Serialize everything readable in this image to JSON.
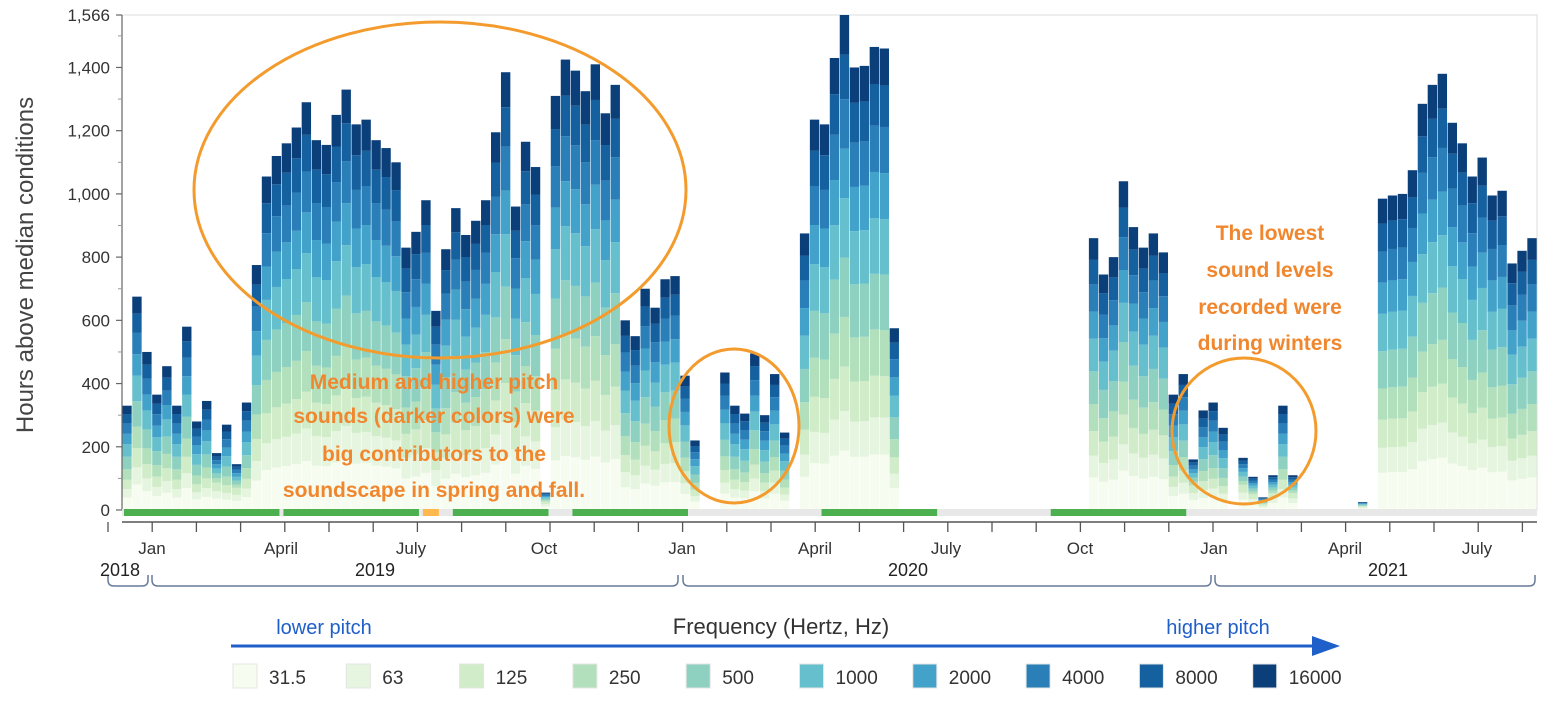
{
  "chart_data": {
    "type": "bar",
    "stacked": true,
    "ylabel": "Hours above median conditions",
    "ylim": [
      0,
      1566
    ],
    "y_ticks": [
      "1,566",
      "1,400",
      "1,200",
      "1,000",
      "800",
      "600",
      "400",
      "200",
      "0"
    ],
    "y_tick_values": [
      1566,
      1400,
      1200,
      1000,
      800,
      600,
      400,
      200,
      0
    ],
    "x_tick_labels": [
      "Jan",
      "April",
      "July",
      "Oct",
      "Jan",
      "April",
      "July",
      "Oct",
      "Jan",
      "April",
      "July"
    ],
    "year_labels": [
      "2018",
      "2019",
      "2020",
      "2021"
    ],
    "bars": {
      "totals": [
        330,
        675,
        500,
        365,
        455,
        330,
        580,
        280,
        345,
        180,
        270,
        145,
        340,
        775,
        1055,
        1120,
        1160,
        1210,
        1290,
        1170,
        1155,
        1250,
        1330,
        1220,
        1235,
        1170,
        1145,
        1100,
        830,
        880,
        980,
        630,
        825,
        955,
        870,
        915,
        980,
        1195,
        1385,
        960,
        1165,
        1085,
        55,
        1310,
        1425,
        1390,
        1325,
        1410,
        1255,
        1345,
        600,
        550,
        700,
        640,
        730,
        740,
        425,
        220,
        0,
        0,
        435,
        330,
        305,
        495,
        300,
        430,
        245,
        0,
        875,
        1235,
        1220,
        1430,
        1566,
        1400,
        1405,
        1465,
        1460,
        575,
        0,
        0,
        0,
        0,
        0,
        0,
        0,
        0,
        0,
        0,
        0,
        0,
        0,
        0,
        0,
        0,
        0,
        0,
        0,
        860,
        745,
        800,
        1040,
        895,
        830,
        875,
        815,
        365,
        430,
        160,
        315,
        340,
        260,
        0,
        165,
        105,
        40,
        110,
        330,
        110,
        0,
        0,
        0,
        0,
        0,
        0,
        25,
        0,
        985,
        995,
        1000,
        1075,
        1285,
        1345,
        1380,
        1225,
        1160,
        1055,
        1115,
        995,
        1010,
        780,
        820,
        860
      ],
      "low_shares": [
        0.12,
        0.1,
        0.1
      ],
      "segment_shares": [
        0.12,
        0.08,
        0.09,
        0.1,
        0.12,
        0.12,
        0.1,
        0.1,
        0.09,
        0.08
      ]
    },
    "categories": [
      "31.5",
      "63",
      "125",
      "250",
      "500",
      "1000",
      "2000",
      "4000",
      "8000",
      "16000"
    ],
    "colors": [
      "#f7fcf0",
      "#e6f5df",
      "#d0ecc8",
      "#b2e0bc",
      "#8ed1c1",
      "#66bfcc",
      "#43a2ca",
      "#2a7fb8",
      "#15609f",
      "#0b3f7a"
    ],
    "timeline": {
      "segments": [
        {
          "start": 0,
          "end": 16,
          "status": "green"
        },
        {
          "start": 16,
          "end": 30,
          "status": "green"
        },
        {
          "start": 30,
          "end": 32,
          "status": "orange"
        },
        {
          "start": 33,
          "end": 43,
          "status": "green"
        },
        {
          "start": 45,
          "end": 57,
          "status": "green"
        },
        {
          "start": 70,
          "end": 82,
          "status": "green"
        },
        {
          "start": 93,
          "end": 107,
          "status": "green"
        }
      ],
      "colors": {
        "green": "#4caf50",
        "orange": "#ffb84d",
        "track": "#e8e8e8"
      }
    },
    "annotations": [
      "Medium and higher pitch",
      "sounds (darker colors) were",
      "big contributors to the",
      "soundscape in spring and fall.",
      "The lowest",
      "sound levels",
      "recorded were",
      "during winters"
    ],
    "legend": {
      "title": "Frequency (Hertz, Hz)",
      "lower": "lower pitch",
      "higher": "higher pitch"
    },
    "accent_color": "#f0872e",
    "arrow_color": "#1f5fc9"
  }
}
